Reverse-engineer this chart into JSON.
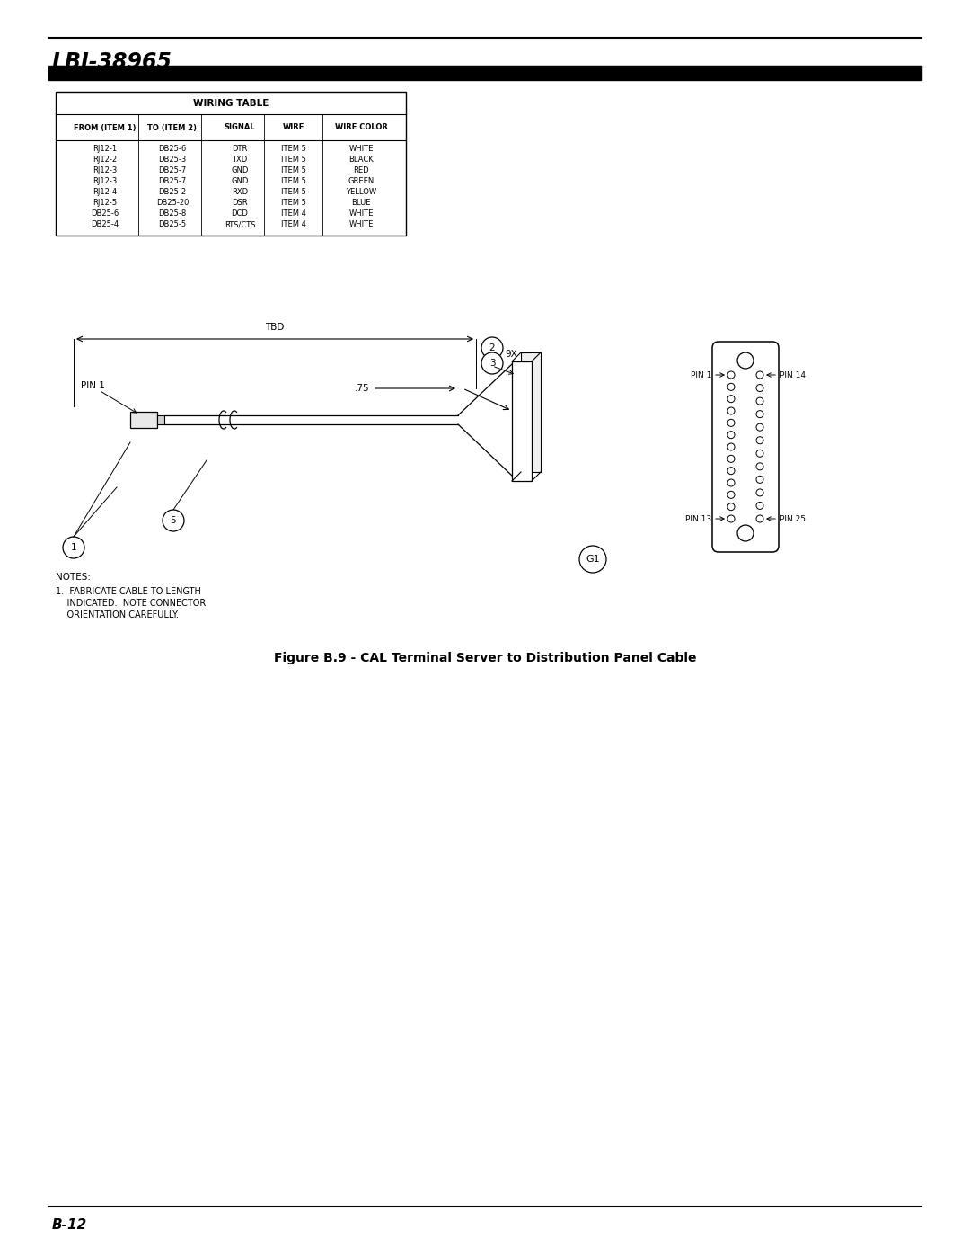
{
  "title": "LBI-38965",
  "figure_caption": "Figure B.9 - CAL Terminal Server to Distribution Panel Cable",
  "page_label": "B-12",
  "wiring_table": {
    "header": "WIRING TABLE",
    "columns": [
      "FROM (ITEM 1)",
      "TO (ITEM 2)",
      "SIGNAL",
      "WIRE",
      "WIRE COLOR"
    ],
    "rows": [
      [
        "RJ12-1",
        "DB25-6",
        "DTR",
        "ITEM 5",
        "WHITE"
      ],
      [
        "RJ12-2",
        "DB25-3",
        "TXD",
        "ITEM 5",
        "BLACK"
      ],
      [
        "RJ12-3",
        "DB25-7",
        "GND",
        "ITEM 5",
        "RED"
      ],
      [
        "RJ12-3",
        "DB25-7",
        "GND",
        "ITEM 5",
        "GREEN"
      ],
      [
        "RJ12-4",
        "DB25-2",
        "RXD",
        "ITEM 5",
        "YELLOW"
      ],
      [
        "RJ12-5",
        "DB25-20",
        "DSR",
        "ITEM 5",
        "BLUE"
      ],
      [
        "DB25-6",
        "DB25-8",
        "DCD",
        "ITEM 4",
        "WHITE"
      ],
      [
        "DB25-4",
        "DB25-5",
        "RTS/CTS",
        "ITEM 4",
        "WHITE"
      ]
    ]
  },
  "notes": [
    "NOTES:",
    "1.  FABRICATE CABLE TO LENGTH",
    "    INDICATED.  NOTE CONNECTOR",
    "    ORIENTATION CAREFULLY."
  ],
  "bg_color": "#ffffff",
  "line_color": "#000000"
}
